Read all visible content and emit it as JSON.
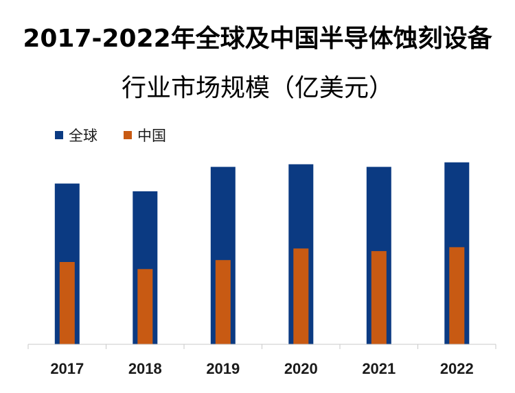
{
  "chart_data": {
    "type": "bar",
    "title_lines": [
      "2017-2022年全球及中国半导体蚀刻设备",
      "行业市场规模（亿美元）"
    ],
    "categories": [
      "2017",
      "2018",
      "2019",
      "2020",
      "2021",
      "2022"
    ],
    "series": [
      {
        "name": "全球",
        "color": "#0b3a82",
        "values": [
          125,
          119,
          138,
          140,
          138,
          141.5
        ]
      },
      {
        "name": "中国",
        "color": "#c85a13",
        "values": [
          64,
          58.5,
          65.5,
          74.5,
          72.5,
          75.5
        ]
      }
    ],
    "ylim": [
      0,
      160
    ],
    "grid": false,
    "legend_position": "top-left"
  }
}
